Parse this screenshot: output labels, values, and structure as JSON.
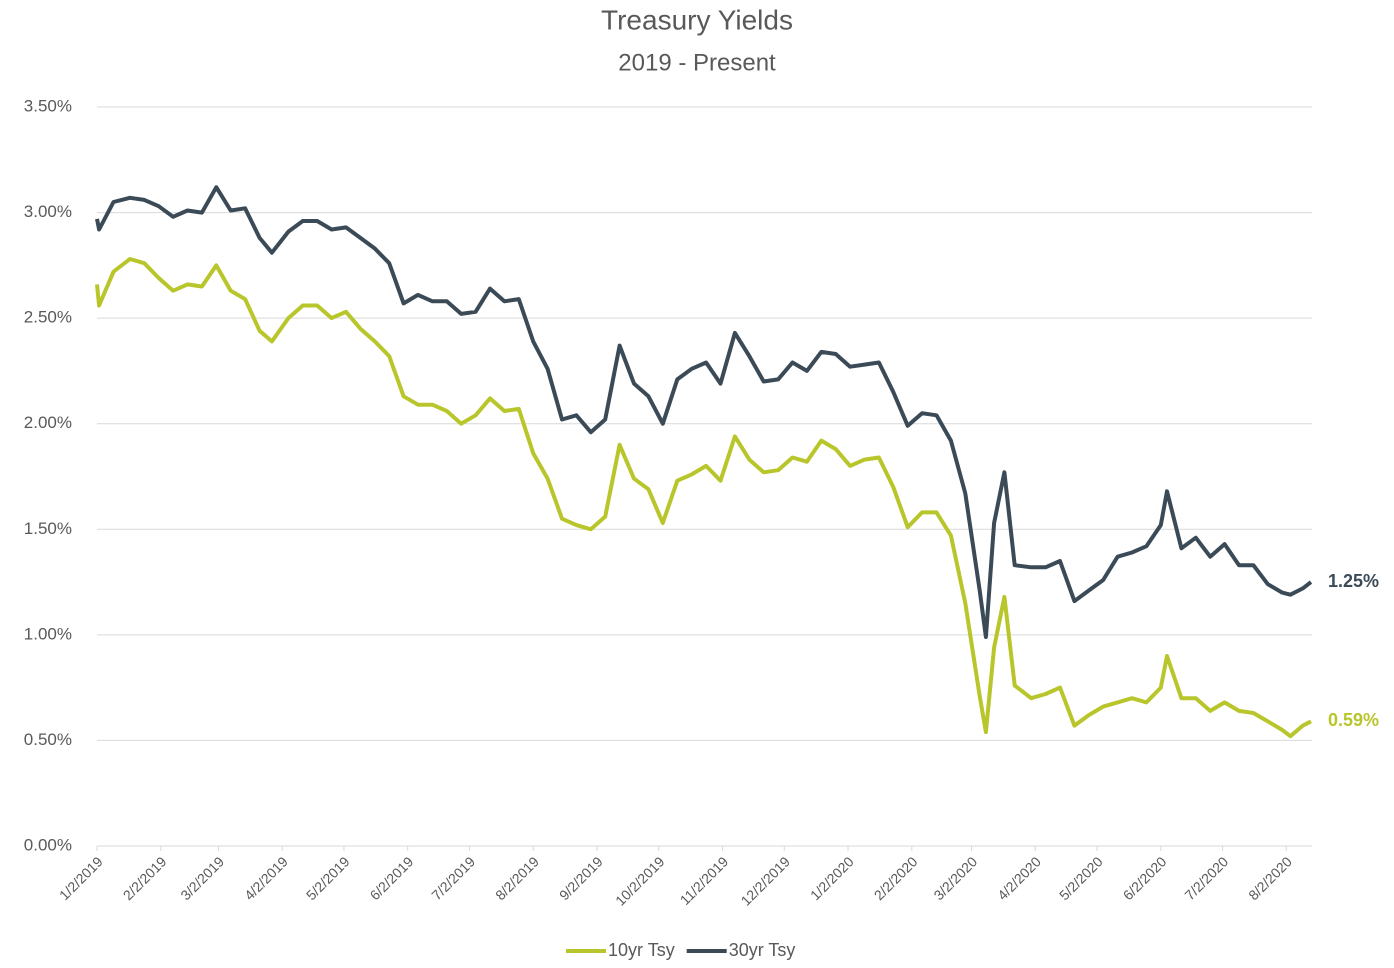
{
  "chart_data": {
    "type": "line",
    "title": "Treasury Yields",
    "subtitle": "2019 - Present",
    "x": [
      "1/2/2019",
      "1/3/2019",
      "1/10/2019",
      "1/18/2019",
      "1/25/2019",
      "2/1/2019",
      "2/8/2019",
      "2/15/2019",
      "2/22/2019",
      "3/1/2019",
      "3/8/2019",
      "3/15/2019",
      "3/22/2019",
      "3/28/2019",
      "4/5/2019",
      "4/12/2019",
      "4/19/2019",
      "4/26/2019",
      "5/3/2019",
      "5/10/2019",
      "5/17/2019",
      "5/24/2019",
      "5/31/2019",
      "6/7/2019",
      "6/14/2019",
      "6/21/2019",
      "6/28/2019",
      "7/5/2019",
      "7/12/2019",
      "7/19/2019",
      "7/26/2019",
      "8/2/2019",
      "8/9/2019",
      "8/16/2019",
      "8/23/2019",
      "8/30/2019",
      "9/6/2019",
      "9/13/2019",
      "9/20/2019",
      "9/27/2019",
      "10/4/2019",
      "10/11/2019",
      "10/18/2019",
      "10/25/2019",
      "11/1/2019",
      "11/8/2019",
      "11/15/2019",
      "11/22/2019",
      "11/29/2019",
      "12/6/2019",
      "12/13/2019",
      "12/20/2019",
      "12/27/2019",
      "1/3/2020",
      "1/10/2020",
      "1/17/2020",
      "1/24/2020",
      "1/31/2020",
      "2/7/2020",
      "2/14/2020",
      "2/21/2020",
      "2/28/2020",
      "3/6/2020",
      "3/9/2020",
      "3/13/2020",
      "3/18/2020",
      "3/23/2020",
      "3/31/2020",
      "4/7/2020",
      "4/14/2020",
      "4/21/2020",
      "4/28/2020",
      "5/5/2020",
      "5/12/2020",
      "5/19/2020",
      "5/26/2020",
      "6/2/2020",
      "6/5/2020",
      "6/12/2020",
      "6/19/2020",
      "6/26/2020",
      "7/3/2020",
      "7/10/2020",
      "7/17/2020",
      "7/24/2020",
      "7/31/2020",
      "8/4/2020",
      "8/10/2020",
      "8/14/2020"
    ],
    "series": [
      {
        "name": "10yr Tsy",
        "color": "#b8c62c",
        "end_label": "0.59%",
        "values": [
          2.66,
          2.56,
          2.72,
          2.78,
          2.76,
          2.69,
          2.63,
          2.66,
          2.65,
          2.75,
          2.63,
          2.59,
          2.44,
          2.39,
          2.5,
          2.56,
          2.56,
          2.5,
          2.53,
          2.45,
          2.39,
          2.32,
          2.13,
          2.09,
          2.09,
          2.06,
          2.0,
          2.04,
          2.12,
          2.06,
          2.07,
          1.86,
          1.74,
          1.55,
          1.52,
          1.5,
          1.56,
          1.9,
          1.74,
          1.69,
          1.53,
          1.73,
          1.76,
          1.8,
          1.73,
          1.94,
          1.83,
          1.77,
          1.78,
          1.84,
          1.82,
          1.92,
          1.88,
          1.8,
          1.83,
          1.84,
          1.7,
          1.51,
          1.58,
          1.58,
          1.47,
          1.15,
          0.71,
          0.54,
          0.94,
          1.18,
          0.76,
          0.7,
          0.72,
          0.75,
          0.57,
          0.62,
          0.66,
          0.68,
          0.7,
          0.68,
          0.75,
          0.9,
          0.7,
          0.7,
          0.64,
          0.68,
          0.64,
          0.63,
          0.59,
          0.55,
          0.52,
          0.57,
          0.59
        ]
      },
      {
        "name": "30yr Tsy",
        "color": "#3b4a57",
        "end_label": "1.25%",
        "values": [
          2.97,
          2.92,
          3.05,
          3.07,
          3.06,
          3.03,
          2.98,
          3.01,
          3.0,
          3.12,
          3.01,
          3.02,
          2.88,
          2.81,
          2.91,
          2.96,
          2.96,
          2.92,
          2.93,
          2.88,
          2.83,
          2.76,
          2.57,
          2.61,
          2.58,
          2.58,
          2.52,
          2.53,
          2.64,
          2.58,
          2.59,
          2.39,
          2.26,
          2.02,
          2.04,
          1.96,
          2.02,
          2.37,
          2.19,
          2.13,
          2.0,
          2.21,
          2.26,
          2.29,
          2.19,
          2.43,
          2.32,
          2.2,
          2.21,
          2.29,
          2.25,
          2.34,
          2.33,
          2.27,
          2.28,
          2.29,
          2.15,
          1.99,
          2.05,
          2.04,
          1.92,
          1.67,
          1.21,
          0.99,
          1.53,
          1.77,
          1.33,
          1.32,
          1.32,
          1.35,
          1.16,
          1.21,
          1.26,
          1.37,
          1.39,
          1.42,
          1.52,
          1.68,
          1.41,
          1.46,
          1.37,
          1.43,
          1.33,
          1.33,
          1.24,
          1.2,
          1.19,
          1.22,
          1.25
        ]
      }
    ],
    "xlim": [
      "1/2/2019",
      "8/14/2020"
    ],
    "xticks": [
      "1/2/2019",
      "2/2/2019",
      "3/2/2019",
      "4/2/2019",
      "5/2/2019",
      "6/2/2019",
      "7/2/2019",
      "8/2/2019",
      "9/2/2019",
      "10/2/2019",
      "11/2/2019",
      "12/2/2019",
      "1/2/2020",
      "2/2/2020",
      "3/2/2020",
      "4/2/2020",
      "5/2/2020",
      "6/2/2020",
      "7/2/2020",
      "8/2/2020"
    ],
    "ylim": [
      0,
      3.5
    ],
    "yticks": [
      {
        "value": 0,
        "label": "0.00%"
      },
      {
        "value": 0.5,
        "label": "0.50%"
      },
      {
        "value": 1,
        "label": "1.00%"
      },
      {
        "value": 1.5,
        "label": "1.50%"
      },
      {
        "value": 2,
        "label": "2.00%"
      },
      {
        "value": 2.5,
        "label": "2.50%"
      },
      {
        "value": 3,
        "label": "3.00%"
      },
      {
        "value": 3.5,
        "label": "3.50%"
      }
    ],
    "grid": true,
    "legend": "bottom"
  }
}
